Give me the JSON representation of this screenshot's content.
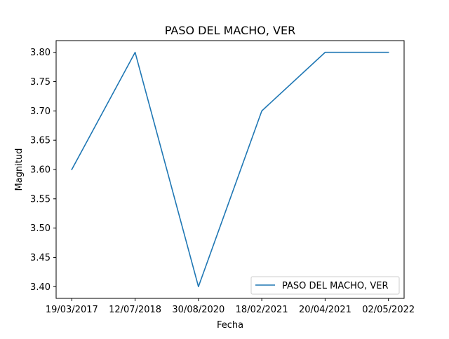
{
  "chart_data": {
    "type": "line",
    "title": "PASO DEL MACHO, VER",
    "xlabel": "Fecha",
    "ylabel": "Magnitud",
    "categories": [
      "19/03/2017",
      "12/07/2018",
      "30/08/2020",
      "18/02/2021",
      "20/04/2021",
      "02/05/2022"
    ],
    "series": [
      {
        "name": "PASO DEL MACHO, VER",
        "values": [
          3.6,
          3.8,
          3.4,
          3.7,
          3.8,
          3.8
        ],
        "color": "#1f77b4"
      }
    ],
    "ylim": [
      3.38,
      3.82
    ],
    "yticks": [
      "3.40",
      "3.45",
      "3.50",
      "3.55",
      "3.60",
      "3.65",
      "3.70",
      "3.75",
      "3.80"
    ],
    "grid": false,
    "legend_position": "lower right"
  }
}
